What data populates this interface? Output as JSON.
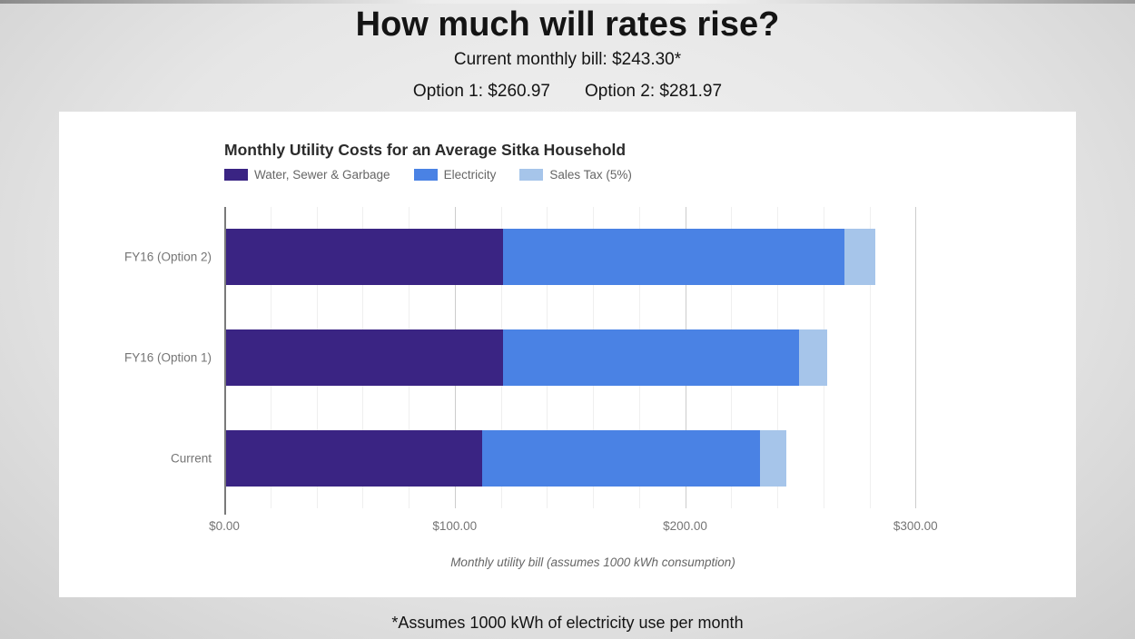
{
  "page": {
    "title": "How much will rates rise?",
    "subtitle": "Current monthly bill: $243.30*",
    "option1": "Option 1: $260.97",
    "option2": "Option 2: $281.97",
    "footnote": "*Assumes 1000 kWh of electricity use per month"
  },
  "chart_data": {
    "type": "bar",
    "orientation": "horizontal",
    "title": "Monthly Utility Costs for an Average Sitka Household",
    "xlabel": "Monthly utility bill (assumes 1000 kWh consumption)",
    "categories": [
      "FY16 (Option 2)",
      "FY16 (Option 1)",
      "Current"
    ],
    "series": [
      {
        "name": "Water, Sewer & Garbage",
        "color": "#3A2483",
        "values": [
          120.21,
          120.21,
          111.14
        ]
      },
      {
        "name": "Electricity",
        "color": "#4A82E4",
        "values": [
          148.33,
          128.33,
          120.57
        ]
      },
      {
        "name": "Sales Tax (5%)",
        "color": "#A6C5EA",
        "values": [
          13.43,
          12.43,
          11.59
        ]
      }
    ],
    "totals": [
      281.97,
      260.97,
      243.3
    ],
    "x_ticks": [
      {
        "label": "$0.00",
        "value": 0
      },
      {
        "label": "$100.00",
        "value": 100
      },
      {
        "label": "$200.00",
        "value": 200
      },
      {
        "label": "$300.00",
        "value": 300
      }
    ],
    "xlim": [
      0,
      320
    ],
    "minor_grid_step": 20,
    "major_grid_step": 100,
    "grid": true,
    "legend_position": "top-left",
    "axis_color": "#7a7a7a",
    "major_grid_color": "#cccccc",
    "minor_grid_color": "#efefef"
  }
}
